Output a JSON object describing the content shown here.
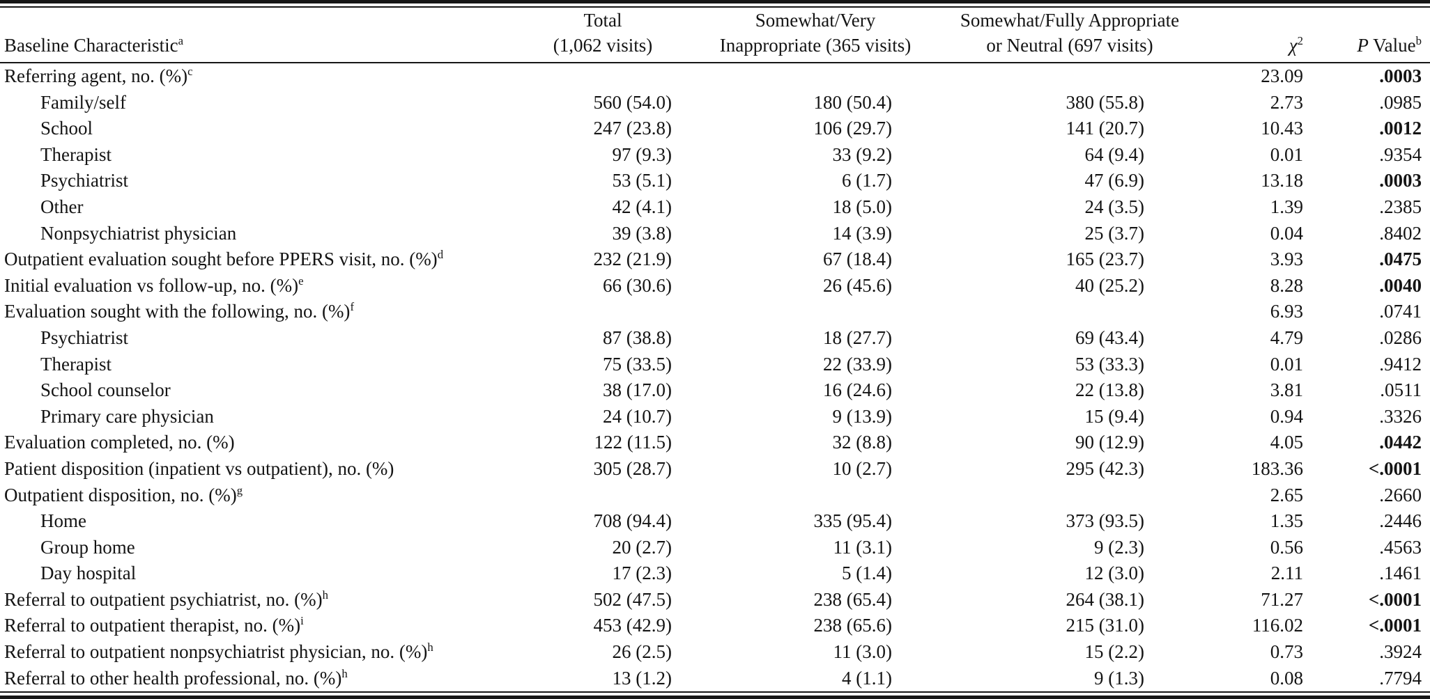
{
  "table": {
    "header": {
      "col_label": {
        "text": "Baseline Characteristic",
        "sup": "a"
      },
      "col_total": {
        "line1": "Total",
        "line2": "(1,062 visits)"
      },
      "col_inappropriate": {
        "line1": "Somewhat/Very",
        "line2": "Inappropriate (365 visits)"
      },
      "col_appropriate": {
        "line1": "Somewhat/Fully Appropriate",
        "line2": "or Neutral (697 visits)"
      },
      "col_chi2": {
        "symbol": "χ",
        "sup": "2"
      },
      "col_pvalue": {
        "italic": "P",
        "rest": " Value",
        "sup": "b"
      }
    },
    "rows": [
      {
        "label": "Referring agent, no. (%)",
        "sup": "c",
        "indent": false,
        "total": "",
        "inappropriate": "",
        "appropriate": "",
        "chi2": "23.09",
        "p": ".0003",
        "p_bold": true
      },
      {
        "label": "Family/self",
        "sup": "",
        "indent": true,
        "total": "560 (54.0)",
        "inappropriate": "180 (50.4)",
        "appropriate": "380 (55.8)",
        "chi2": "2.73",
        "p": ".0985",
        "p_bold": false
      },
      {
        "label": "School",
        "sup": "",
        "indent": true,
        "total": "247 (23.8)",
        "inappropriate": "106 (29.7)",
        "appropriate": "141 (20.7)",
        "chi2": "10.43",
        "p": ".0012",
        "p_bold": true
      },
      {
        "label": "Therapist",
        "sup": "",
        "indent": true,
        "total": "97 (9.3)",
        "inappropriate": "33 (9.2)",
        "appropriate": "64 (9.4)",
        "chi2": "0.01",
        "p": ".9354",
        "p_bold": false
      },
      {
        "label": "Psychiatrist",
        "sup": "",
        "indent": true,
        "total": "53 (5.1)",
        "inappropriate": "6 (1.7)",
        "appropriate": "47 (6.9)",
        "chi2": "13.18",
        "p": ".0003",
        "p_bold": true
      },
      {
        "label": "Other",
        "sup": "",
        "indent": true,
        "total": "42 (4.1)",
        "inappropriate": "18 (5.0)",
        "appropriate": "24 (3.5)",
        "chi2": "1.39",
        "p": ".2385",
        "p_bold": false
      },
      {
        "label": "Nonpsychiatrist physician",
        "sup": "",
        "indent": true,
        "total": "39 (3.8)",
        "inappropriate": "14 (3.9)",
        "appropriate": "25 (3.7)",
        "chi2": "0.04",
        "p": ".8402",
        "p_bold": false
      },
      {
        "label": "Outpatient evaluation sought before PPERS visit, no. (%)",
        "sup": "d",
        "indent": false,
        "total": "232 (21.9)",
        "inappropriate": "67 (18.4)",
        "appropriate": "165 (23.7)",
        "chi2": "3.93",
        "p": ".0475",
        "p_bold": true
      },
      {
        "label": "Initial evaluation vs follow-up, no. (%)",
        "sup": "e",
        "indent": false,
        "total": "66 (30.6)",
        "inappropriate": "26 (45.6)",
        "appropriate": "40 (25.2)",
        "chi2": "8.28",
        "p": ".0040",
        "p_bold": true
      },
      {
        "label": "Evaluation sought with the following, no. (%)",
        "sup": "f",
        "indent": false,
        "total": "",
        "inappropriate": "",
        "appropriate": "",
        "chi2": "6.93",
        "p": ".0741",
        "p_bold": false
      },
      {
        "label": "Psychiatrist",
        "sup": "",
        "indent": true,
        "total": "87 (38.8)",
        "inappropriate": "18 (27.7)",
        "appropriate": "69 (43.4)",
        "chi2": "4.79",
        "p": ".0286",
        "p_bold": false
      },
      {
        "label": "Therapist",
        "sup": "",
        "indent": true,
        "total": "75 (33.5)",
        "inappropriate": "22 (33.9)",
        "appropriate": "53 (33.3)",
        "chi2": "0.01",
        "p": ".9412",
        "p_bold": false
      },
      {
        "label": "School counselor",
        "sup": "",
        "indent": true,
        "total": "38 (17.0)",
        "inappropriate": "16 (24.6)",
        "appropriate": "22 (13.8)",
        "chi2": "3.81",
        "p": ".0511",
        "p_bold": false
      },
      {
        "label": "Primary care physician",
        "sup": "",
        "indent": true,
        "total": "24 (10.7)",
        "inappropriate": "9 (13.9)",
        "appropriate": "15 (9.4)",
        "chi2": "0.94",
        "p": ".3326",
        "p_bold": false
      },
      {
        "label": "Evaluation completed, no. (%)",
        "sup": "",
        "indent": false,
        "total": "122 (11.5)",
        "inappropriate": "32 (8.8)",
        "appropriate": "90 (12.9)",
        "chi2": "4.05",
        "p": ".0442",
        "p_bold": true
      },
      {
        "label": "Patient disposition (inpatient vs outpatient), no. (%)",
        "sup": "",
        "indent": false,
        "total": "305 (28.7)",
        "inappropriate": "10 (2.7)",
        "appropriate": "295 (42.3)",
        "chi2": "183.36",
        "p": "<.0001",
        "p_bold": true
      },
      {
        "label": "Outpatient disposition, no. (%)",
        "sup": "g",
        "indent": false,
        "total": "",
        "inappropriate": "",
        "appropriate": "",
        "chi2": "2.65",
        "p": ".2660",
        "p_bold": false
      },
      {
        "label": "Home",
        "sup": "",
        "indent": true,
        "total": "708 (94.4)",
        "inappropriate": "335 (95.4)",
        "appropriate": "373 (93.5)",
        "chi2": "1.35",
        "p": ".2446",
        "p_bold": false
      },
      {
        "label": "Group home",
        "sup": "",
        "indent": true,
        "total": "20 (2.7)",
        "inappropriate": "11 (3.1)",
        "appropriate": "9 (2.3)",
        "chi2": "0.56",
        "p": ".4563",
        "p_bold": false
      },
      {
        "label": "Day hospital",
        "sup": "",
        "indent": true,
        "total": "17 (2.3)",
        "inappropriate": "5 (1.4)",
        "appropriate": "12 (3.0)",
        "chi2": "2.11",
        "p": ".1461",
        "p_bold": false
      },
      {
        "label": "Referral to outpatient psychiatrist, no. (%)",
        "sup": "h",
        "indent": false,
        "total": "502 (47.5)",
        "inappropriate": "238 (65.4)",
        "appropriate": "264 (38.1)",
        "chi2": "71.27",
        "p": "<.0001",
        "p_bold": true
      },
      {
        "label": "Referral to outpatient therapist, no. (%)",
        "sup": "i",
        "indent": false,
        "total": "453 (42.9)",
        "inappropriate": "238 (65.6)",
        "appropriate": "215 (31.0)",
        "chi2": "116.02",
        "p": "<.0001",
        "p_bold": true
      },
      {
        "label": "Referral to outpatient nonpsychiatrist physician, no. (%)",
        "sup": "h",
        "indent": false,
        "total": "26 (2.5)",
        "inappropriate": "11 (3.0)",
        "appropriate": "15 (2.2)",
        "chi2": "0.73",
        "p": ".3924",
        "p_bold": false
      },
      {
        "label": "Referral to other health professional, no. (%)",
        "sup": "h",
        "indent": false,
        "total": "13 (1.2)",
        "inappropriate": "4 (1.1)",
        "appropriate": "9 (1.3)",
        "chi2": "0.08",
        "p": ".7794",
        "p_bold": false
      }
    ]
  }
}
